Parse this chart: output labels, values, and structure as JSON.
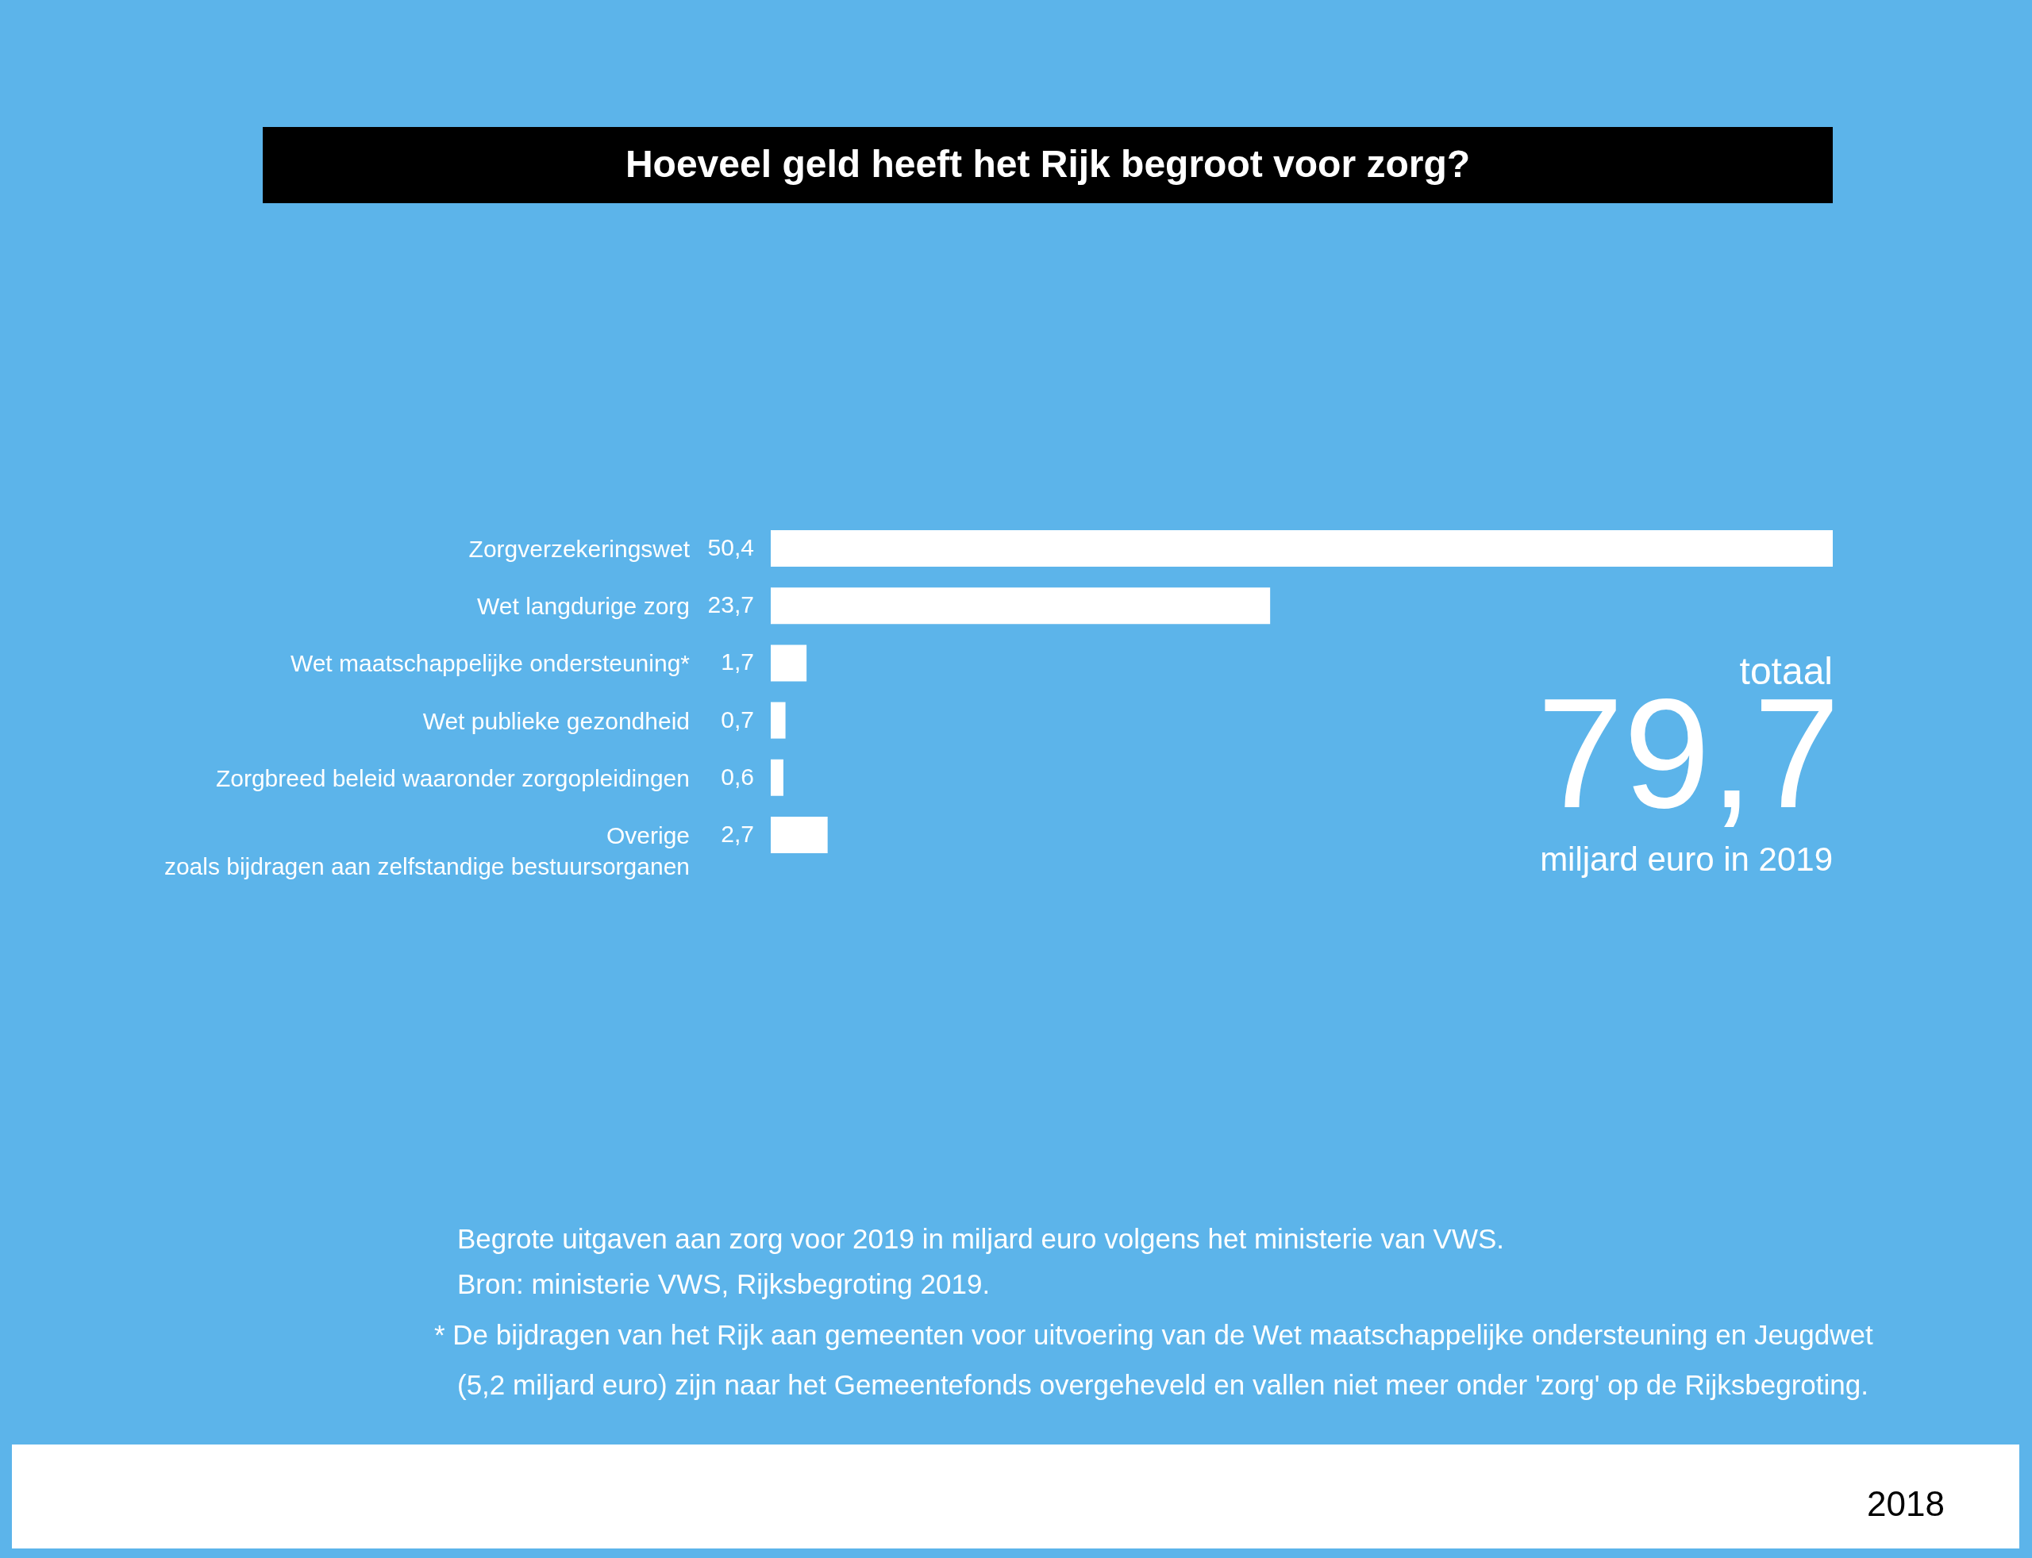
{
  "chart_data": {
    "type": "bar",
    "orientation": "horizontal",
    "title": "Hoeveel geld heeft het Rijk begroot voor zorg?",
    "categories": [
      "Zorgverzekeringswet",
      "Wet langdurige zorg",
      "Wet maatschappelijke ondersteuning*",
      "Wet publieke gezondheid",
      "Zorgbreed beleid waaronder zorgopleidingen",
      "Overige\nzoals bijdragen aan zelfstandige bestuursorganen"
    ],
    "values": [
      50.4,
      23.7,
      1.7,
      0.7,
      0.6,
      2.7
    ],
    "value_labels": [
      "50,4",
      "23,7",
      "1,7",
      "0,7",
      "0,6",
      "2,7"
    ],
    "color": "#ffffff",
    "annotations": [
      "totaal",
      "79,7",
      "miljard euro in 2019",
      "Begrote uitgaven aan zorg voor 2019 in miljard euro volgens het ministerie van VWS.",
      "Bron: ministerie VWS, Rijksbegroting 2019.",
      "* De bijdragen van het Rijk aan gemeenten voor uitvoering van de Wet maatschappelijke ondersteuning en Jeugdwet",
      "(5,2 miljard euro) zijn naar het Gemeentefonds overgeheveld en vallen niet meer onder 'zorg' op de Rijksbegroting.",
      "2018"
    ]
  }
}
